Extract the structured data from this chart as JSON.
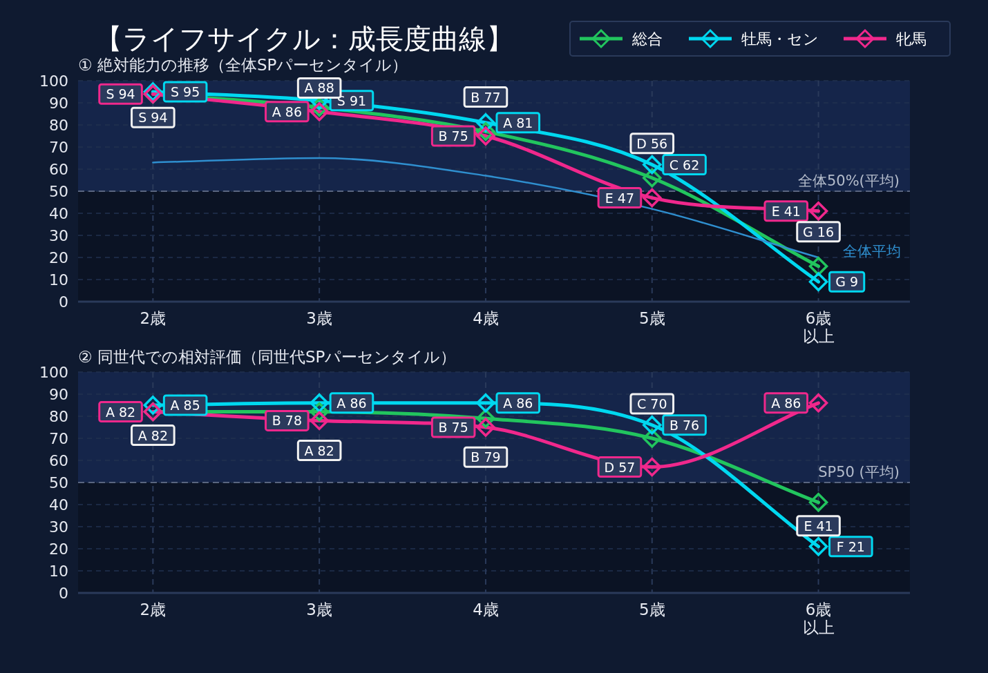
{
  "chart_data": [
    {
      "type": "line",
      "title": "【ライフサイクル：成長度曲線】",
      "subtitle": "① 絶対能力の推移（全体SPパーセンタイル）",
      "categories": [
        "2歳",
        "3歳",
        "4歳",
        "5歳",
        "6歳以上"
      ],
      "series": [
        {
          "name": "総合",
          "color": "#22c55e",
          "values": [
            94,
            88,
            77,
            56,
            16
          ],
          "value_labels": [
            "S 94",
            "A 88",
            "B 77",
            "D 56",
            "G 16"
          ]
        },
        {
          "name": "牡馬・セン",
          "color": "#00d8f0",
          "values": [
            95,
            91,
            81,
            62,
            9
          ],
          "value_labels": [
            "S 95",
            "S 91",
            "A 81",
            "C 62",
            "G 9"
          ]
        },
        {
          "name": "牝馬",
          "color": "#f0288c",
          "values": [
            94,
            86,
            75,
            47,
            41
          ],
          "value_labels": [
            "S 94",
            "A 86",
            "B 75",
            "E 47",
            "E 41"
          ]
        },
        {
          "name": "全体平均",
          "color": "#2f8fcf",
          "marker": "none",
          "values": [
            63,
            65,
            57,
            42,
            20
          ]
        }
      ],
      "ylim": [
        0,
        100
      ],
      "yticks": [
        0,
        10,
        20,
        30,
        40,
        50,
        60,
        70,
        80,
        90,
        100
      ],
      "grid": true,
      "legend": "top right",
      "marker": "diamond",
      "ref_lines": [
        {
          "axis": "y",
          "value": 50,
          "label": "全体50%(平均)"
        }
      ],
      "bands": [
        {
          "axis": "y",
          "from": 50,
          "to": 100,
          "color": "#15254a"
        }
      ]
    },
    {
      "type": "line",
      "title": "② 同世代での相対評価（同世代SPパーセンタイル）",
      "categories": [
        "2歳",
        "3歳",
        "4歳",
        "5歳",
        "6歳以上"
      ],
      "series": [
        {
          "color": "#22c55e",
          "values": [
            82,
            82,
            79,
            70,
            41
          ],
          "value_labels": [
            "A 82",
            "A 82",
            "B 79",
            "C 70",
            "E 41"
          ]
        },
        {
          "color": "#00d8f0",
          "values": [
            85,
            86,
            86,
            76,
            21
          ],
          "value_labels": [
            "A 85",
            "A 86",
            "A 86",
            "B 76",
            "F 21"
          ]
        },
        {
          "color": "#f0288c",
          "values": [
            82,
            78,
            75,
            57,
            86
          ],
          "value_labels": [
            "A 82",
            "B 78",
            "B 75",
            "D 57",
            "A 86"
          ]
        }
      ],
      "ylim": [
        0,
        100
      ],
      "yticks": [
        0,
        10,
        20,
        30,
        40,
        50,
        60,
        70,
        80,
        90,
        100
      ],
      "grid": true,
      "marker": "diamond",
      "ref_lines": [
        {
          "axis": "y",
          "value": 50,
          "label": "SP50 (平均)"
        }
      ],
      "bands": [
        {
          "axis": "y",
          "from": 50,
          "to": 100,
          "color": "#15254a"
        }
      ]
    }
  ]
}
